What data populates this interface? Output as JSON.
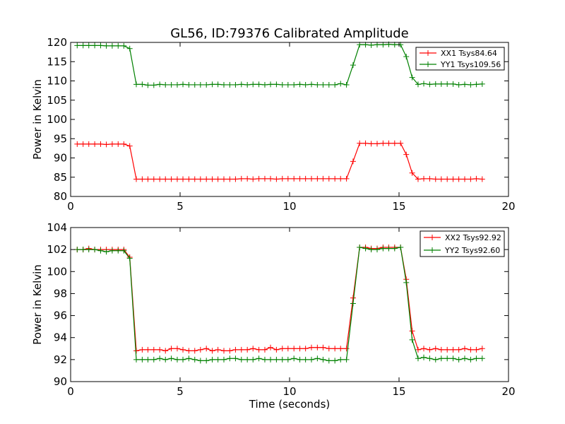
{
  "figure": {
    "title": "GL56, ID:79376 Calibrated Amplitude",
    "xlabel": "Time (seconds)"
  },
  "chart_data": [
    {
      "type": "line",
      "title": "GL56, ID:79376 Calibrated Amplitude",
      "xlabel": "",
      "ylabel": "Power in Kelvin",
      "xlim": [
        0,
        20
      ],
      "ylim": [
        80,
        120
      ],
      "xticks": [
        0,
        5,
        10,
        15,
        20
      ],
      "yticks": [
        80,
        85,
        90,
        95,
        100,
        105,
        110,
        115,
        120
      ],
      "grid": false,
      "legend_position": "top-right",
      "x": [
        0.3,
        0.57,
        0.83,
        1.1,
        1.37,
        1.63,
        1.9,
        2.17,
        2.43,
        2.7,
        3.0,
        3.27,
        3.53,
        3.8,
        4.07,
        4.33,
        4.6,
        4.87,
        5.13,
        5.4,
        5.67,
        5.93,
        6.2,
        6.47,
        6.73,
        7.0,
        7.27,
        7.53,
        7.8,
        8.07,
        8.33,
        8.6,
        8.87,
        9.13,
        9.4,
        9.67,
        9.93,
        10.2,
        10.47,
        10.73,
        11.0,
        11.27,
        11.53,
        11.8,
        12.07,
        12.33,
        12.6,
        12.9,
        13.2,
        13.47,
        13.73,
        14.0,
        14.27,
        14.53,
        14.8,
        15.07,
        15.33,
        15.6,
        15.87,
        16.13,
        16.4,
        16.67,
        16.93,
        17.2,
        17.47,
        17.73,
        18.0,
        18.27,
        18.53,
        18.8
      ],
      "series": [
        {
          "name": "XX1 Tsys84.64",
          "color": "#ff0000",
          "values": [
            93.6,
            93.6,
            93.6,
            93.6,
            93.6,
            93.5,
            93.6,
            93.6,
            93.6,
            93.1,
            84.5,
            84.5,
            84.5,
            84.5,
            84.5,
            84.5,
            84.5,
            84.5,
            84.5,
            84.5,
            84.5,
            84.5,
            84.5,
            84.5,
            84.5,
            84.5,
            84.5,
            84.5,
            84.6,
            84.6,
            84.5,
            84.6,
            84.6,
            84.6,
            84.5,
            84.6,
            84.6,
            84.6,
            84.6,
            84.6,
            84.6,
            84.6,
            84.6,
            84.6,
            84.6,
            84.6,
            84.6,
            89.1,
            93.8,
            93.8,
            93.7,
            93.7,
            93.8,
            93.8,
            93.8,
            93.8,
            90.9,
            86.1,
            84.5,
            84.6,
            84.6,
            84.5,
            84.5,
            84.5,
            84.5,
            84.5,
            84.5,
            84.5,
            84.6,
            84.5
          ]
        },
        {
          "name": "YY1 Tsys109.56",
          "color": "#008000",
          "values": [
            119.2,
            119.2,
            119.2,
            119.2,
            119.2,
            119.1,
            119.1,
            119.1,
            119.1,
            118.4,
            109.1,
            109.1,
            108.9,
            108.9,
            109.1,
            109.0,
            109.0,
            109.0,
            109.1,
            109.0,
            109.0,
            109.0,
            109.0,
            109.1,
            109.1,
            109.0,
            109.0,
            109.0,
            109.1,
            109.0,
            109.1,
            109.1,
            109.0,
            109.1,
            109.1,
            109.0,
            109.0,
            109.0,
            109.1,
            109.0,
            109.1,
            109.0,
            109.0,
            109.0,
            109.0,
            109.3,
            109.0,
            114.1,
            119.4,
            119.4,
            119.3,
            119.4,
            119.4,
            119.5,
            119.4,
            119.4,
            116.3,
            110.9,
            109.1,
            109.3,
            109.1,
            109.2,
            109.2,
            109.2,
            109.2,
            109.0,
            109.1,
            109.0,
            109.1,
            109.2
          ]
        }
      ]
    },
    {
      "type": "line",
      "title": "",
      "xlabel": "Time (seconds)",
      "ylabel": "Power in Kelvin",
      "xlim": [
        0,
        20
      ],
      "ylim": [
        90,
        104
      ],
      "xticks": [
        0,
        5,
        10,
        15,
        20
      ],
      "yticks": [
        90,
        92,
        94,
        96,
        98,
        100,
        102,
        104
      ],
      "grid": false,
      "legend_position": "top-right",
      "x": [
        0.3,
        0.57,
        0.83,
        1.1,
        1.37,
        1.63,
        1.9,
        2.17,
        2.43,
        2.7,
        3.0,
        3.27,
        3.53,
        3.8,
        4.07,
        4.33,
        4.6,
        4.87,
        5.13,
        5.4,
        5.67,
        5.93,
        6.2,
        6.47,
        6.73,
        7.0,
        7.27,
        7.53,
        7.8,
        8.07,
        8.33,
        8.6,
        8.87,
        9.13,
        9.4,
        9.67,
        9.93,
        10.2,
        10.47,
        10.73,
        11.0,
        11.27,
        11.53,
        11.8,
        12.07,
        12.33,
        12.6,
        12.9,
        13.2,
        13.47,
        13.73,
        14.0,
        14.27,
        14.53,
        14.8,
        15.07,
        15.33,
        15.6,
        15.87,
        16.13,
        16.4,
        16.67,
        16.93,
        17.2,
        17.47,
        17.73,
        18.0,
        18.27,
        18.53,
        18.8
      ],
      "series": [
        {
          "name": "XX2 Tsys92.92",
          "color": "#ff0000",
          "values": [
            102.0,
            102.0,
            102.1,
            102.0,
            102.0,
            102.0,
            102.0,
            102.0,
            102.0,
            101.3,
            92.8,
            92.9,
            92.9,
            92.9,
            92.9,
            92.8,
            93.0,
            93.0,
            92.9,
            92.8,
            92.8,
            92.9,
            93.0,
            92.8,
            92.9,
            92.8,
            92.8,
            92.9,
            92.9,
            92.9,
            93.0,
            92.9,
            92.9,
            93.1,
            92.9,
            93.0,
            93.0,
            93.0,
            93.0,
            93.0,
            93.1,
            93.1,
            93.1,
            93.0,
            93.0,
            93.0,
            93.0,
            97.6,
            102.2,
            102.2,
            102.1,
            102.1,
            102.2,
            102.2,
            102.2,
            102.2,
            99.3,
            94.6,
            92.9,
            93.0,
            92.9,
            93.0,
            92.9,
            92.9,
            92.9,
            92.9,
            93.0,
            92.9,
            92.9,
            93.0
          ]
        },
        {
          "name": "YY2 Tsys92.60",
          "color": "#008000",
          "values": [
            102.0,
            102.0,
            102.0,
            102.0,
            101.9,
            101.8,
            101.9,
            101.9,
            101.9,
            101.2,
            92.0,
            92.0,
            92.0,
            92.0,
            92.1,
            92.0,
            92.1,
            92.0,
            92.0,
            92.1,
            92.0,
            91.9,
            91.9,
            92.0,
            92.0,
            92.0,
            92.1,
            92.1,
            92.0,
            92.0,
            92.0,
            92.1,
            92.0,
            92.0,
            92.0,
            92.0,
            92.0,
            92.1,
            92.0,
            92.0,
            92.0,
            92.1,
            92.0,
            91.9,
            91.9,
            92.0,
            92.0,
            97.1,
            102.2,
            102.1,
            102.0,
            102.0,
            102.1,
            102.1,
            102.1,
            102.2,
            99.0,
            93.8,
            92.1,
            92.2,
            92.1,
            92.0,
            92.1,
            92.1,
            92.1,
            92.0,
            92.1,
            92.0,
            92.1,
            92.1
          ]
        }
      ]
    }
  ]
}
